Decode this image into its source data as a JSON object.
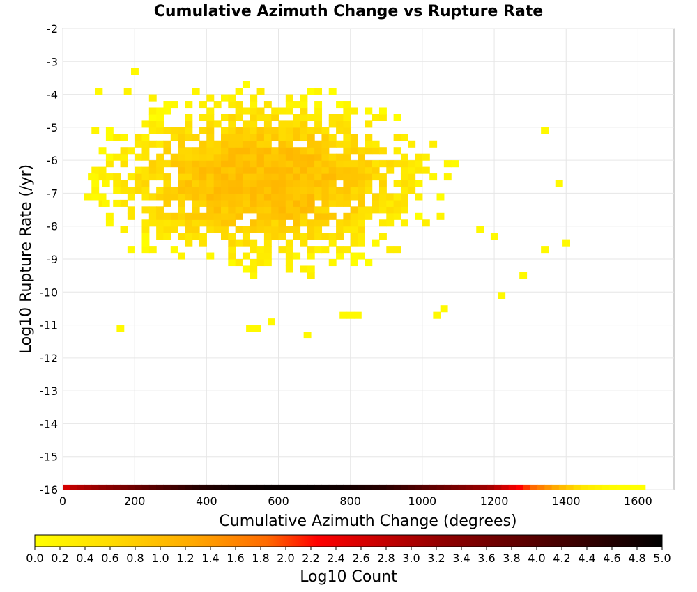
{
  "chart_data": {
    "type": "heatmap",
    "title": "Cumulative Azimuth Change vs Rupture Rate",
    "xlabel": "Cumulative Azimuth Change (degrees)",
    "ylabel": "Log10 Rupture Rate (/yr)",
    "xlim": [
      0,
      1700
    ],
    "ylim": [
      -16,
      -2
    ],
    "x_ticks": [
      "0",
      "200",
      "400",
      "600",
      "800",
      "1000",
      "1200",
      "1400",
      "1600"
    ],
    "y_ticks": [
      "-2",
      "-3",
      "-4",
      "-5",
      "-6",
      "-7",
      "-8",
      "-9",
      "-10",
      "-11",
      "-12",
      "-13",
      "-14",
      "-15",
      "-16"
    ],
    "grid": true,
    "colorbar": {
      "label": "Log10 Count",
      "range": [
        0.0,
        5.0
      ],
      "ticks": [
        "0.0",
        "0.2",
        "0.4",
        "0.6",
        "0.8",
        "1.0",
        "1.2",
        "1.4",
        "1.6",
        "1.8",
        "2.0",
        "2.2",
        "2.4",
        "2.6",
        "2.8",
        "3.0",
        "3.2",
        "3.4",
        "3.6",
        "3.8",
        "4.0",
        "4.2",
        "4.4",
        "4.6",
        "4.8",
        "5.0"
      ],
      "colors": [
        "#ffff00",
        "#ffaa00",
        "#ff0000",
        "#800000",
        "#000000"
      ]
    },
    "bin_width_x": 20,
    "bin_height_y": 0.2,
    "bottom_row": {
      "y": -16,
      "x_start": 0,
      "values": [
        2.6,
        2.8,
        2.9,
        3.0,
        3.1,
        3.2,
        3.3,
        3.4,
        3.5,
        3.6,
        3.7,
        3.8,
        3.9,
        4.0,
        4.1,
        4.2,
        4.3,
        4.4,
        4.5,
        4.55,
        4.6,
        4.65,
        4.7,
        4.75,
        4.8,
        4.8,
        4.85,
        4.85,
        4.9,
        4.9,
        4.9,
        4.9,
        4.9,
        4.9,
        4.9,
        4.85,
        4.85,
        4.8,
        4.8,
        4.75,
        4.7,
        4.65,
        4.6,
        4.55,
        4.5,
        4.4,
        4.3,
        4.2,
        4.1,
        4.0,
        3.9,
        3.8,
        3.7,
        3.6,
        3.5,
        3.4,
        3.3,
        3.2,
        3.1,
        3.0,
        2.8,
        2.6,
        2.4,
        2.2,
        2.0,
        1.8,
        1.6,
        1.4,
        1.2,
        1.0,
        0.8,
        0.6,
        0.4,
        0.3,
        0.2,
        0.1,
        0.05,
        0.02,
        0.01,
        0.0,
        0.0
      ]
    },
    "scatter_bins": [
      {
        "x": 190,
        "y": -3.4,
        "v": 0.1
      },
      {
        "x": 90,
        "y": -4.0,
        "v": 0.1
      },
      {
        "x": 170,
        "y": -4.0,
        "v": 0.2
      },
      {
        "x": 1330,
        "y": -5.2,
        "v": 0.1
      },
      {
        "x": 1370,
        "y": -6.8,
        "v": 0.1
      },
      {
        "x": 1390,
        "y": -8.6,
        "v": 0.1
      },
      {
        "x": 1330,
        "y": -8.8,
        "v": 0.1
      },
      {
        "x": 1270,
        "y": -9.6,
        "v": 0.1
      },
      {
        "x": 1210,
        "y": -10.2,
        "v": 0.1
      },
      {
        "x": 1050,
        "y": -10.6,
        "v": 0.1
      },
      {
        "x": 1030,
        "y": -10.8,
        "v": 0.1
      },
      {
        "x": 770,
        "y": -10.8,
        "v": 0.1
      },
      {
        "x": 790,
        "y": -10.8,
        "v": 0.1
      },
      {
        "x": 810,
        "y": -10.8,
        "v": 0.1
      },
      {
        "x": 570,
        "y": -11.0,
        "v": 0.1
      },
      {
        "x": 510,
        "y": -11.2,
        "v": 0.1
      },
      {
        "x": 530,
        "y": -11.2,
        "v": 0.1
      },
      {
        "x": 150,
        "y": -11.2,
        "v": 0.1
      },
      {
        "x": 670,
        "y": -11.4,
        "v": 0.1
      },
      {
        "x": 70,
        "y": -6.6,
        "v": 0.1
      },
      {
        "x": 110,
        "y": -6.8,
        "v": 0.1
      },
      {
        "x": 110,
        "y": -7.4,
        "v": 0.1
      },
      {
        "x": 1150,
        "y": -8.2,
        "v": 0.1
      },
      {
        "x": 1190,
        "y": -8.4,
        "v": 0.1
      }
    ]
  }
}
